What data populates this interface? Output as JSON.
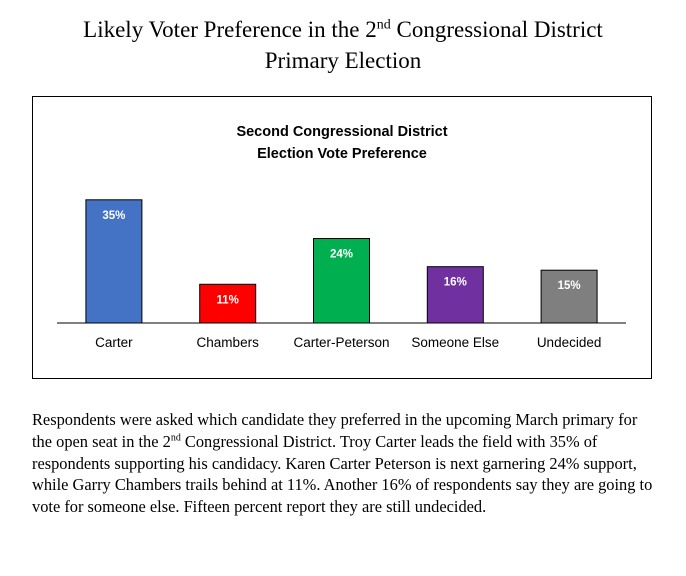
{
  "document": {
    "title_line1_pre": "Likely Voter Preference in the 2",
    "title_line1_sup": "nd",
    "title_line1_post": " Congressional District",
    "title_line2": "Primary Election"
  },
  "chart_data": {
    "type": "bar",
    "title_line1": "Second Congressional District",
    "title_line2": "Election Vote Preference",
    "categories": [
      "Carter",
      "Chambers",
      "Carter-Peterson",
      "Someone Else",
      "Undecided"
    ],
    "values": [
      35,
      11,
      24,
      16,
      15
    ],
    "value_labels": [
      "35%",
      "11%",
      "24%",
      "16%",
      "15%"
    ],
    "colors": [
      "#4472C4",
      "#FF0000",
      "#00B050",
      "#7030A0",
      "#7F7F7F"
    ],
    "xlabel": "",
    "ylabel": "",
    "ylim": [
      0,
      40
    ],
    "grid": false,
    "legend": "none"
  },
  "paragraph": {
    "part1": "Respondents were asked which candidate they preferred in the upcoming March primary for the open seat in the 2",
    "sup": "nd",
    "part2": " Congressional District. Troy Carter leads the field with 35% of respondents supporting his candidacy. Karen Carter Peterson is next garnering 24% support, while Garry Chambers trails behind at 11%. Another 16% of respondents say they are going to vote for someone else. Fifteen percent report they are still undecided."
  }
}
